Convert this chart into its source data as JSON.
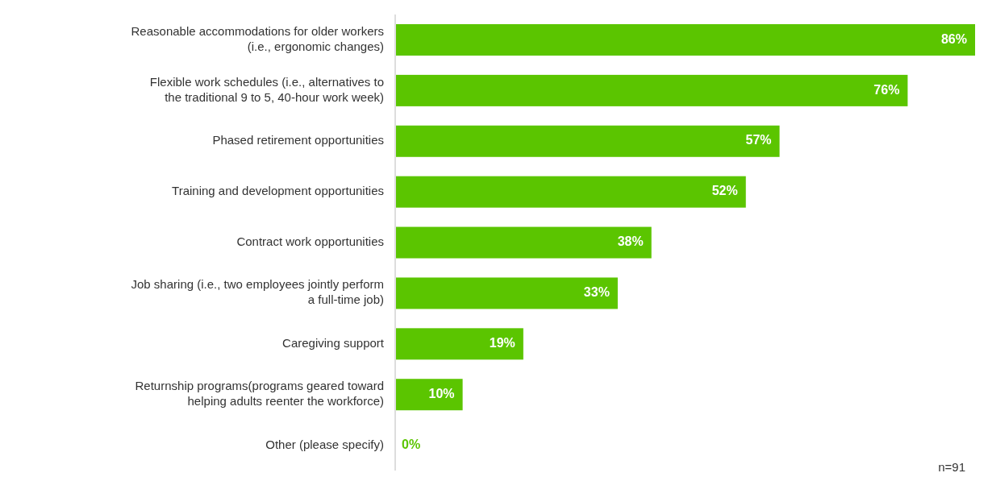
{
  "chart_data": {
    "type": "bar",
    "orientation": "horizontal",
    "categories": [
      "Reasonable accommodations for older workers (i.e., ergonomic changes)",
      "Flexible work schedules (i.e., alternatives to the traditional 9 to 5, 40-hour work week)",
      "Phased retirement opportunities",
      "Training and development opportunities",
      "Contract work opportunities",
      "Job sharing (i.e., two employees jointly perform a full-time job)",
      "Caregiving support",
      "Returnship programs(programs geared toward helping adults reenter the workforce)",
      "Other (please specify)"
    ],
    "values": [
      86,
      76,
      57,
      52,
      38,
      33,
      19,
      10,
      0
    ],
    "color": "#5bc500",
    "value_labels": [
      "86%",
      "76%",
      "57%",
      "52%",
      "38%",
      "33%",
      "19%",
      "10%",
      "0%"
    ],
    "tick_labels": "y",
    "annotations": [
      "n=91"
    ]
  }
}
